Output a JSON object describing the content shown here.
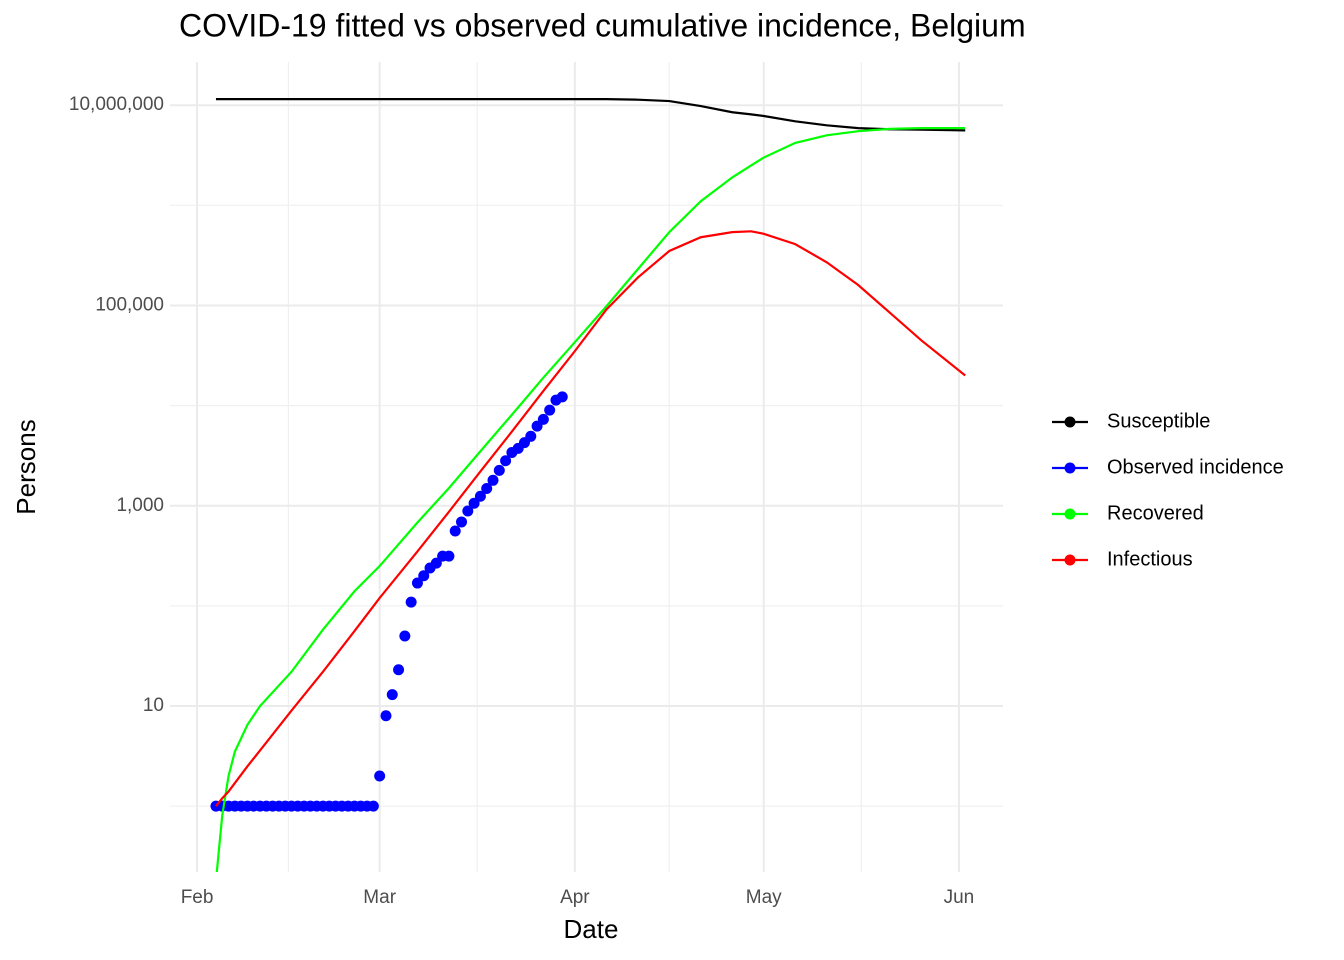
{
  "chart_data": {
    "type": "line",
    "title": "COVID-19 fitted vs observed cumulative incidence, Belgium",
    "x_label": "Date",
    "y_label": "Persons",
    "log_y": true,
    "grid": true,
    "legend": "right",
    "xlim": [
      -4.3,
      128.0
    ],
    "xticks": [
      {
        "value": 0,
        "label": "Feb"
      },
      {
        "value": 29,
        "label": "Mar"
      },
      {
        "value": 60,
        "label": "Apr"
      },
      {
        "value": 90,
        "label": "May"
      },
      {
        "value": 121,
        "label": "Jun"
      }
    ],
    "ylim": [
      0.22,
      27000000
    ],
    "yticks": [
      10,
      {
        "value": 1000,
        "label": "1,000"
      },
      {
        "value": 100000,
        "label": "100,000"
      },
      {
        "value": 10000000,
        "label": "10,000,000"
      }
    ],
    "series": [
      {
        "name": "Susceptible",
        "color": "#000000",
        "type": "line",
        "x": [
          3,
          4,
          5,
          6,
          8,
          10,
          15,
          20,
          25,
          29,
          35,
          40,
          45,
          50,
          55,
          60,
          65,
          70,
          75,
          80,
          85,
          88,
          90,
          95,
          100,
          105,
          110,
          115,
          122
        ],
        "values": [
          11500000,
          11500000,
          11500000,
          11500000,
          11500000,
          11500000,
          11500000,
          11500000,
          11500000,
          11500000,
          11500000,
          11500000,
          11500000,
          11500000,
          11500000,
          11500000,
          11500000,
          11350000,
          11000000,
          9800000,
          8500000,
          8100000,
          7800000,
          6900000,
          6300000,
          5900000,
          5750000,
          5700000,
          5600000
        ]
      },
      {
        "name": "Observed incidence",
        "color": "#0000ff",
        "type": "scatter",
        "x": [
          3,
          4,
          5,
          6,
          7,
          8,
          9,
          10,
          11,
          12,
          13,
          14,
          15,
          16,
          17,
          18,
          19,
          20,
          21,
          22,
          23,
          24,
          25,
          26,
          27,
          28,
          29,
          30,
          31,
          32,
          33,
          34,
          35,
          36,
          37,
          38,
          39,
          40,
          41,
          42,
          43,
          44,
          45,
          46,
          47,
          48,
          49,
          50,
          51,
          52,
          53,
          54,
          55,
          56,
          57,
          58
        ],
        "values": [
          1,
          1,
          1,
          1,
          1,
          1,
          1,
          1,
          1,
          1,
          1,
          1,
          1,
          1,
          1,
          1,
          1,
          1,
          1,
          1,
          1,
          1,
          1,
          1,
          1,
          1,
          2,
          8,
          13,
          23,
          50,
          109,
          169,
          200,
          239,
          267,
          314,
          314,
          559,
          689,
          886,
          1058,
          1243,
          1486,
          1795,
          2257,
          2815,
          3401,
          3743,
          4269,
          4937,
          6235,
          7284,
          9009,
          11350,
          12220
        ]
      },
      {
        "name": "Recovered",
        "color": "#00ff00",
        "type": "line",
        "x": [
          3,
          4,
          5,
          6,
          8,
          10,
          15,
          20,
          25,
          29,
          35,
          40,
          45,
          50,
          55,
          60,
          65,
          70,
          75,
          80,
          85,
          88,
          90,
          95,
          100,
          105,
          110,
          115,
          122
        ],
        "values": [
          0.18,
          0.81,
          2.0,
          3.5,
          6.5,
          10,
          22,
          58,
          140,
          250,
          680,
          1500,
          3500,
          8100,
          19000,
          43000,
          98000,
          230000,
          540000,
          1100000,
          1900000,
          2500000,
          3000000,
          4200000,
          5000000,
          5500000,
          5800000,
          5900000,
          5900000
        ]
      },
      {
        "name": "Infectious",
        "color": "#ff0000",
        "type": "line",
        "x": [
          3,
          4,
          5,
          6,
          8,
          10,
          15,
          20,
          25,
          29,
          35,
          40,
          45,
          50,
          55,
          60,
          65,
          70,
          75,
          80,
          85,
          88,
          90,
          95,
          100,
          105,
          110,
          115,
          122
        ],
        "values": [
          1.0,
          1.2,
          1.4,
          1.7,
          2.5,
          3.6,
          9,
          22,
          56,
          120,
          350,
          870,
          2200,
          5500,
          14000,
          35000,
          91000,
          190000,
          350000,
          480000,
          540000,
          550000,
          520000,
          410000,
          270000,
          160000,
          85000,
          45000,
          20000
        ]
      }
    ]
  }
}
